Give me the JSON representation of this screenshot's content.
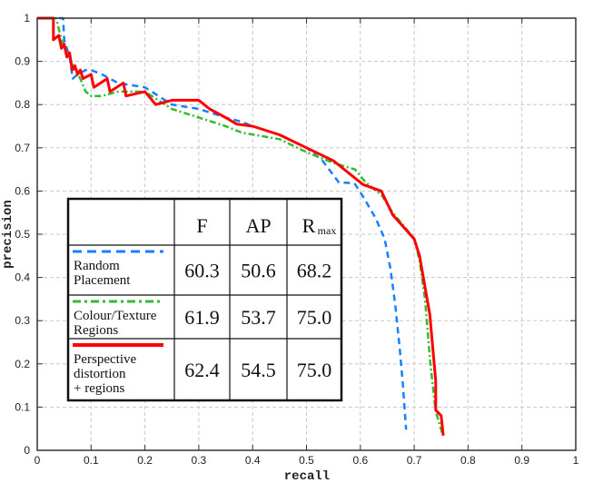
{
  "chart_data": {
    "type": "line",
    "title": "",
    "xlabel": "recall",
    "ylabel": "precision",
    "xlim": [
      0,
      1
    ],
    "ylim": [
      0,
      1
    ],
    "xticks": [
      "0",
      "0.1",
      "0.2",
      "0.3",
      "0.4",
      "0.5",
      "0.6",
      "0.7",
      "0.8",
      "0.9",
      "1"
    ],
    "yticks": [
      "0",
      "0.1",
      "0.2",
      "0.3",
      "0.4",
      "0.5",
      "0.6",
      "0.7",
      "0.8",
      "0.9",
      "1"
    ],
    "grid": true,
    "legend_placement": "center-left (inset table)",
    "series": [
      {
        "name": "Random Placement",
        "color": "#1a7fff",
        "style": "dashed",
        "points": [
          [
            0,
            1
          ],
          [
            0.048,
            1
          ],
          [
            0.05,
            0.95
          ],
          [
            0.06,
            0.91
          ],
          [
            0.066,
            0.86
          ],
          [
            0.075,
            0.87
          ],
          [
            0.09,
            0.88
          ],
          [
            0.1,
            0.88
          ],
          [
            0.12,
            0.87
          ],
          [
            0.15,
            0.85
          ],
          [
            0.2,
            0.84
          ],
          [
            0.25,
            0.8
          ],
          [
            0.3,
            0.79
          ],
          [
            0.35,
            0.77
          ],
          [
            0.38,
            0.76
          ],
          [
            0.4,
            0.75
          ],
          [
            0.45,
            0.73
          ],
          [
            0.5,
            0.7
          ],
          [
            0.53,
            0.67
          ],
          [
            0.56,
            0.62
          ],
          [
            0.589,
            0.618
          ],
          [
            0.605,
            0.587
          ],
          [
            0.628,
            0.538
          ],
          [
            0.645,
            0.49
          ],
          [
            0.656,
            0.42
          ],
          [
            0.665,
            0.335
          ],
          [
            0.673,
            0.237
          ],
          [
            0.679,
            0.153
          ],
          [
            0.685,
            0.048
          ]
        ]
      },
      {
        "name": "Colour/Texture Regions",
        "color": "#33bb33",
        "style": "dash-dot",
        "points": [
          [
            0,
            1
          ],
          [
            0.035,
            1
          ],
          [
            0.045,
            0.95
          ],
          [
            0.06,
            0.91
          ],
          [
            0.07,
            0.88
          ],
          [
            0.08,
            0.86
          ],
          [
            0.09,
            0.83
          ],
          [
            0.1,
            0.82
          ],
          [
            0.12,
            0.82
          ],
          [
            0.15,
            0.83
          ],
          [
            0.2,
            0.83
          ],
          [
            0.25,
            0.79
          ],
          [
            0.3,
            0.77
          ],
          [
            0.35,
            0.75
          ],
          [
            0.38,
            0.735
          ],
          [
            0.45,
            0.72
          ],
          [
            0.5,
            0.69
          ],
          [
            0.55,
            0.665
          ],
          [
            0.59,
            0.65
          ],
          [
            0.61,
            0.62
          ],
          [
            0.64,
            0.59
          ],
          [
            0.66,
            0.55
          ],
          [
            0.7,
            0.49
          ],
          [
            0.71,
            0.44
          ],
          [
            0.72,
            0.35
          ],
          [
            0.73,
            0.2
          ],
          [
            0.74,
            0.09
          ],
          [
            0.752,
            0.04
          ]
        ]
      },
      {
        "name": "Perspective distortion + regions",
        "color": "#ff0000",
        "style": "solid",
        "points": [
          [
            0,
            1
          ],
          [
            0.03,
            1
          ],
          [
            0.03,
            0.95
          ],
          [
            0.04,
            0.96
          ],
          [
            0.045,
            0.93
          ],
          [
            0.05,
            0.94
          ],
          [
            0.055,
            0.91
          ],
          [
            0.06,
            0.92
          ],
          [
            0.065,
            0.88
          ],
          [
            0.07,
            0.89
          ],
          [
            0.075,
            0.87
          ],
          [
            0.08,
            0.88
          ],
          [
            0.085,
            0.86
          ],
          [
            0.1,
            0.87
          ],
          [
            0.105,
            0.84
          ],
          [
            0.13,
            0.86
          ],
          [
            0.135,
            0.83
          ],
          [
            0.16,
            0.85
          ],
          [
            0.165,
            0.82
          ],
          [
            0.2,
            0.83
          ],
          [
            0.22,
            0.8
          ],
          [
            0.25,
            0.81
          ],
          [
            0.3,
            0.81
          ],
          [
            0.32,
            0.79
          ],
          [
            0.35,
            0.77
          ],
          [
            0.37,
            0.755
          ],
          [
            0.4,
            0.75
          ],
          [
            0.45,
            0.73
          ],
          [
            0.5,
            0.7
          ],
          [
            0.55,
            0.67
          ],
          [
            0.605,
            0.615
          ],
          [
            0.639,
            0.6
          ],
          [
            0.66,
            0.545
          ],
          [
            0.7,
            0.489
          ],
          [
            0.71,
            0.45
          ],
          [
            0.729,
            0.314
          ],
          [
            0.74,
            0.16
          ],
          [
            0.74,
            0.093
          ],
          [
            0.75,
            0.08
          ],
          [
            0.754,
            0.034
          ]
        ]
      }
    ],
    "table": {
      "headers": [
        "F",
        "AP",
        "R",
        "max"
      ],
      "rows": [
        {
          "label": [
            "Random",
            "Placement"
          ],
          "F": "60.3",
          "AP": "50.6",
          "Rmax": "68.2"
        },
        {
          "label": [
            "Colour/Texture",
            "Regions"
          ],
          "F": "61.9",
          "AP": "53.7",
          "Rmax": "75.0"
        },
        {
          "label": [
            "Perspective",
            "distortion",
            "+ regions"
          ],
          "F": "62.4",
          "AP": "54.5",
          "Rmax": "75.0"
        }
      ]
    }
  }
}
